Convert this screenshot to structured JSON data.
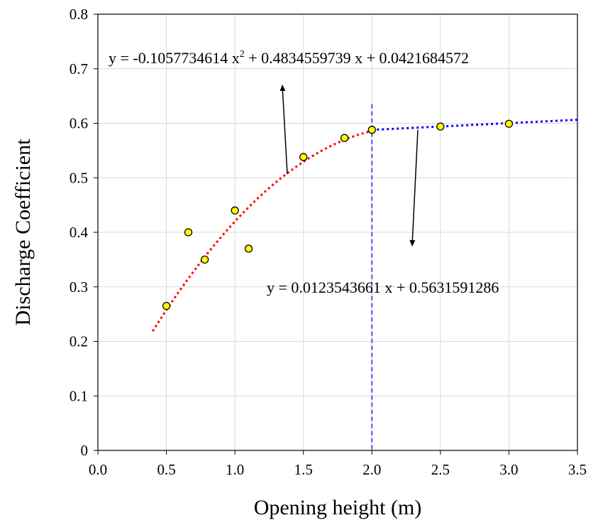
{
  "chart_data": {
    "type": "scatter",
    "title": "",
    "xlabel": "Opening height (m)",
    "ylabel": "Discharge Coefficient",
    "xlim": [
      0.0,
      3.5
    ],
    "ylim": [
      0.0,
      0.8
    ],
    "x_ticks": [
      "0.0",
      "0.5",
      "1.0",
      "1.5",
      "2.0",
      "2.5",
      "3.0",
      "3.5"
    ],
    "y_ticks": [
      "0",
      "0.1",
      "0.2",
      "0.3",
      "0.4",
      "0.5",
      "0.6",
      "0.7",
      "0.8"
    ],
    "grid": true,
    "series": [
      {
        "marker": "circle",
        "color": "#ffff00",
        "edge_color": "#000000",
        "points": [
          {
            "x": 0.5,
            "y": 0.265
          },
          {
            "x": 0.66,
            "y": 0.4
          },
          {
            "x": 0.78,
            "y": 0.35
          },
          {
            "x": 1.0,
            "y": 0.44
          },
          {
            "x": 1.1,
            "y": 0.37
          },
          {
            "x": 1.5,
            "y": 0.538
          },
          {
            "x": 1.8,
            "y": 0.573
          },
          {
            "x": 2.0,
            "y": 0.588
          },
          {
            "x": 2.5,
            "y": 0.594
          },
          {
            "x": 3.0,
            "y": 0.599
          }
        ]
      }
    ],
    "trendlines": [
      {
        "type": "polynomial",
        "coefficients": [
          -0.1057734614,
          0.4834559739,
          0.0421684572
        ],
        "x_range": [
          0.4,
          2.0
        ],
        "color": "#ff0000",
        "style": "dotted"
      },
      {
        "type": "linear",
        "coefficients": [
          0.0123543661,
          0.5631591286
        ],
        "x_range": [
          2.0,
          3.5
        ],
        "color": "#0000ff",
        "style": "dotted"
      }
    ],
    "reference_line": {
      "x": 2.0,
      "color": "#0000ff",
      "style": "dashed"
    },
    "annotations": {
      "poly_equation": {
        "y_eq": "y = -0.1057734614  x",
        "sup": "2",
        "rest": " + 0.4834559739  x + 0.0421684572"
      },
      "linear_equation": "y = 0.0123543661  x + 0.5631591286"
    }
  }
}
